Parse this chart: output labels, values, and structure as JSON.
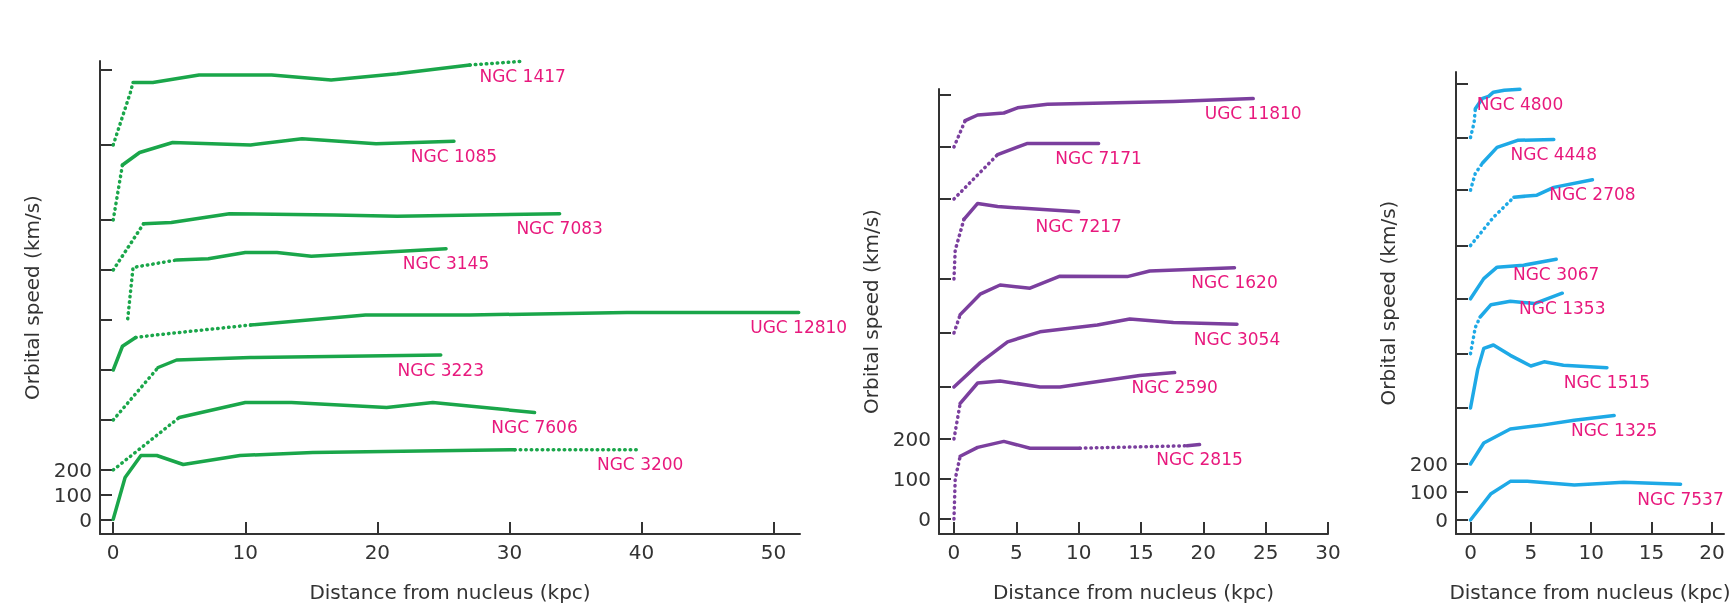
{
  "chart_data": [
    {
      "type": "line",
      "xlabel": "Distance from nucleus (kpc)",
      "ylabel": "Orbital speed (km/s)",
      "xlim": [
        -1,
        52
      ],
      "ylim": [
        -56,
        1836
      ],
      "xticks": [
        0,
        10,
        20,
        30,
        40,
        50
      ],
      "yticks": [
        0,
        100,
        200,
        {
          "value": 400,
          "label": null
        },
        {
          "value": 600,
          "label": null
        },
        {
          "value": 800,
          "label": null
        },
        {
          "value": 1000,
          "label": null
        },
        {
          "value": 1200,
          "label": null
        },
        {
          "value": 1500,
          "label": null
        },
        {
          "value": 1800,
          "label": null
        }
      ],
      "marker": "none",
      "series": [
        {
          "color": "#1aa64a",
          "line_style": "dotted",
          "x": [
            0,
            1.3,
            1.5
          ],
          "values": [
            1500,
            1710,
            1750
          ]
        },
        {
          "color": "#1aa64a",
          "line_style": "solid",
          "x": [
            1.5,
            3,
            6.5,
            12,
            16.5,
            21.5,
            27
          ],
          "values": [
            1750,
            1750,
            1780,
            1780,
            1760,
            1785,
            1820
          ]
        },
        {
          "name": "NGC 1417",
          "color": "#1aa64a",
          "line_style": "dotted",
          "x": [
            27,
            31
          ],
          "values": [
            1820,
            1835
          ]
        },
        {
          "color": "#1aa64a",
          "line_style": "dotted",
          "x": [
            0,
            0.7
          ],
          "values": [
            1200,
            1420
          ]
        },
        {
          "name": "NGC 1085",
          "color": "#1aa64a",
          "line_style": "solid",
          "x": [
            0.7,
            2,
            4.5,
            10.4,
            14.3,
            19.9,
            25.8
          ],
          "values": [
            1420,
            1470,
            1510,
            1500,
            1525,
            1505,
            1515
          ]
        },
        {
          "color": "#1aa64a",
          "line_style": "dotted",
          "x": [
            0,
            2.3
          ],
          "values": [
            1000,
            1185
          ]
        },
        {
          "name": "NGC 7083",
          "color": "#1aa64a",
          "line_style": "solid",
          "x": [
            2.3,
            4.4,
            8.8,
            16.7,
            21.5,
            33.8
          ],
          "values": [
            1185,
            1190,
            1225,
            1220,
            1215,
            1225
          ]
        },
        {
          "color": "#1aa64a",
          "line_style": "dotted",
          "x": [
            1.1,
            1.5,
            4.8
          ],
          "values": [
            805,
            1010,
            1040
          ]
        },
        {
          "name": "NGC 3145",
          "color": "#1aa64a",
          "line_style": "solid",
          "x": [
            4.8,
            7.2,
            10,
            12.4,
            15,
            25.2
          ],
          "values": [
            1040,
            1045,
            1070,
            1070,
            1055,
            1085
          ]
        },
        {
          "color": "#1aa64a",
          "line_style": "solid",
          "x": [
            0,
            0.7,
            1.7
          ],
          "values": [
            600,
            695,
            730
          ]
        },
        {
          "color": "#1aa64a",
          "line_style": "dotted",
          "x": [
            1.7,
            3.2,
            10.4
          ],
          "values": [
            730,
            740,
            780
          ]
        },
        {
          "name": "UGC 12810",
          "color": "#1aa64a",
          "line_style": "solid",
          "x": [
            10.4,
            19.1,
            27,
            38.9,
            51.9
          ],
          "values": [
            780,
            820,
            820,
            830,
            830
          ]
        },
        {
          "color": "#1aa64a",
          "line_style": "dotted",
          "x": [
            0,
            3.4
          ],
          "values": [
            400,
            610
          ]
        },
        {
          "name": "NGC 3223",
          "color": "#1aa64a",
          "line_style": "solid",
          "x": [
            3.4,
            4.8,
            10.4,
            24.8
          ],
          "values": [
            610,
            640,
            650,
            660
          ]
        },
        {
          "color": "#1aa64a",
          "line_style": "dotted",
          "x": [
            0,
            5
          ],
          "values": [
            200,
            410
          ]
        },
        {
          "name": "NGC 7606",
          "color": "#1aa64a",
          "line_style": "solid",
          "x": [
            5,
            10,
            13.5,
            20.7,
            24.2,
            31.9
          ],
          "values": [
            410,
            470,
            470,
            450,
            470,
            430
          ]
        },
        {
          "color": "#1aa64a",
          "line_style": "solid",
          "x": [
            0,
            0.9,
            2.1,
            3.3,
            5.3,
            9.6,
            15.1,
            30.4
          ],
          "values": [
            3,
            170,
            258,
            258,
            222,
            258,
            270,
            281
          ]
        },
        {
          "name": "NGC 3200",
          "color": "#1aa64a",
          "line_style": "dotted",
          "x": [
            30.4,
            39.9
          ],
          "values": [
            281,
            281
          ]
        }
      ]
    },
    {
      "type": "line",
      "xlabel": "Distance from nucleus (kpc)",
      "ylabel": "Orbital speed (km/s)",
      "xlim": [
        -1.2,
        30
      ],
      "ylim": [
        -37.5,
        1075
      ],
      "xticks": [
        0,
        5,
        10,
        15,
        20,
        25,
        30
      ],
      "yticks": [
        0,
        100,
        200,
        {
          "value": 330,
          "label": null
        },
        {
          "value": 465,
          "label": null
        },
        {
          "value": 600,
          "label": null
        },
        {
          "value": 800,
          "label": null
        },
        {
          "value": 930,
          "label": null
        },
        {
          "value": 1060,
          "label": null
        }
      ],
      "marker": "none",
      "series": [
        {
          "color": "#7b3f9e",
          "line_style": "dotted",
          "x": [
            0,
            0.1,
            0.5
          ],
          "values": [
            0,
            100,
            157
          ]
        },
        {
          "color": "#7b3f9e",
          "line_style": "solid",
          "x": [
            0.5,
            1.9,
            4,
            6.1,
            10.1
          ],
          "values": [
            157,
            179,
            194,
            177,
            177
          ]
        },
        {
          "color": "#7b3f9e",
          "line_style": "dotted",
          "x": [
            10.1,
            18.7
          ],
          "values": [
            177,
            183
          ]
        },
        {
          "name": "NGC 2815",
          "color": "#7b3f9e",
          "line_style": "solid",
          "x": [
            18.7,
            19.7
          ],
          "values": [
            183,
            186
          ]
        },
        {
          "color": "#7b3f9e",
          "line_style": "dotted",
          "x": [
            0,
            0.5
          ],
          "values": [
            200,
            289
          ]
        },
        {
          "name": "NGC 2590",
          "color": "#7b3f9e",
          "line_style": "solid",
          "x": [
            0.5,
            1.9,
            3.7,
            6.9,
            8.5,
            14.9,
            17.7
          ],
          "values": [
            289,
            340,
            345,
            330,
            330,
            359,
            366
          ]
        },
        {
          "name": "NGC 3054",
          "color": "#7b3f9e",
          "line_style": "solid",
          "x": [
            0,
            2.1,
            4.3,
            6.9,
            11.5,
            14.1,
            17.6,
            22.7
          ],
          "values": [
            330,
            391,
            443,
            468,
            485,
            500,
            491,
            487
          ]
        },
        {
          "color": "#7b3f9e",
          "line_style": "dotted",
          "x": [
            0,
            0.5
          ],
          "values": [
            465,
            511
          ]
        },
        {
          "name": "NGC 1620",
          "color": "#7b3f9e",
          "line_style": "solid",
          "x": [
            0.5,
            2.1,
            3.7,
            6.1,
            8.5,
            13.9,
            15.7,
            22.5
          ],
          "values": [
            511,
            562,
            585,
            577,
            607,
            606,
            620,
            628
          ]
        },
        {
          "color": "#7b3f9e",
          "line_style": "dotted",
          "x": [
            0,
            0.1,
            0.8
          ],
          "values": [
            600,
            672,
            749
          ]
        },
        {
          "name": "NGC 7217",
          "color": "#7b3f9e",
          "line_style": "solid",
          "x": [
            0.8,
            1.9,
            3.5,
            10
          ],
          "values": [
            749,
            789,
            781,
            768
          ]
        },
        {
          "color": "#7b3f9e",
          "line_style": "dotted",
          "x": [
            0,
            3.5
          ],
          "values": [
            800,
            911
          ]
        },
        {
          "name": "NGC 7171",
          "color": "#7b3f9e",
          "line_style": "solid",
          "x": [
            3.5,
            5.9,
            11.6
          ],
          "values": [
            911,
            939,
            939
          ]
        },
        {
          "color": "#7b3f9e",
          "line_style": "dotted",
          "x": [
            0,
            0.9
          ],
          "values": [
            930,
            996
          ]
        },
        {
          "name": "UGC 11810",
          "color": "#7b3f9e",
          "line_style": "solid",
          "x": [
            0.9,
            1.9,
            4,
            5.1,
            7.5,
            17.6,
            24
          ],
          "values": [
            996,
            1010,
            1015,
            1028,
            1037,
            1044,
            1051
          ]
        }
      ]
    },
    {
      "type": "line",
      "xlabel": "Distance from nucleus (kpc)",
      "ylabel": "Orbital speed (km/s)",
      "xlim": [
        -1.2,
        21
      ],
      "ylim": [
        -50,
        1600
      ],
      "xticks": [
        0,
        5,
        10,
        15,
        20
      ],
      "yticks": [
        0,
        100,
        200,
        {
          "value": 400,
          "label": null
        },
        {
          "value": 594,
          "label": null
        },
        {
          "value": 790,
          "label": null
        },
        {
          "value": 980,
          "label": null
        },
        {
          "value": 1178,
          "label": null
        },
        {
          "value": 1366,
          "label": null
        },
        {
          "value": 1559,
          "label": null
        }
      ],
      "marker": "none",
      "series": [
        {
          "name": "NGC 7537",
          "color": "#1ea9e6",
          "line_style": "solid",
          "x": [
            0,
            1.7,
            3.3,
            4.7,
            8.6,
            12.7,
            17.4
          ],
          "values": [
            0,
            94,
            138,
            138,
            125,
            135,
            128
          ]
        },
        {
          "name": "NGC 1325",
          "color": "#1ea9e6",
          "line_style": "solid",
          "x": [
            0,
            1.1,
            3.3,
            5.8,
            8.6,
            11.9
          ],
          "values": [
            200,
            275,
            325,
            338,
            356,
            373
          ]
        },
        {
          "name": "NGC 1515",
          "color": "#1ea9e6",
          "line_style": "solid",
          "x": [
            0,
            0.6,
            1.1,
            1.9,
            3.3,
            5,
            6.1,
            7.7,
            11.3
          ],
          "values": [
            400,
            538,
            613,
            625,
            588,
            550,
            565,
            553,
            544
          ]
        },
        {
          "color": "#1ea9e6",
          "line_style": "dotted",
          "x": [
            0,
            0.4,
            0.8
          ],
          "values": [
            594,
            688,
            725
          ]
        },
        {
          "name": "NGC 1353",
          "color": "#1ea9e6",
          "line_style": "solid",
          "x": [
            0.8,
            1.7,
            3.3,
            5.3,
            7.6
          ],
          "values": [
            725,
            769,
            781,
            773,
            810
          ]
        },
        {
          "name": "NGC 3067",
          "color": "#1ea9e6",
          "line_style": "solid",
          "x": [
            0,
            1.1,
            2.2,
            4.4,
            7.1
          ],
          "values": [
            790,
            862,
            903,
            910,
            931
          ]
        },
        {
          "color": "#1ea9e6",
          "line_style": "dotted",
          "x": [
            0,
            1.9,
            3.6
          ],
          "values": [
            980,
            1081,
            1153
          ]
        },
        {
          "name": "NGC 2708",
          "color": "#1ea9e6",
          "line_style": "solid",
          "x": [
            3.6,
            5.5,
            6.9,
            10.1
          ],
          "values": [
            1153,
            1160,
            1188,
            1215
          ]
        },
        {
          "color": "#1ea9e6",
          "line_style": "dotted",
          "x": [
            0,
            0.4,
            1
          ],
          "values": [
            1178,
            1238,
            1275
          ]
        },
        {
          "name": "NGC 4448",
          "color": "#1ea9e6",
          "line_style": "solid",
          "x": [
            1,
            2.2,
            3.9,
            6.9
          ],
          "values": [
            1275,
            1331,
            1356,
            1359
          ]
        },
        {
          "color": "#1ea9e6",
          "line_style": "dotted",
          "x": [
            0,
            0.3,
            0.4
          ],
          "values": [
            1366,
            1419,
            1469
          ]
        },
        {
          "name": "NGC 4800",
          "color": "#1ea9e6",
          "line_style": "solid",
          "x": [
            0.4,
            1,
            1.5,
            1.9,
            2.8,
            4.1
          ],
          "values": [
            1469,
            1506,
            1513,
            1528,
            1535,
            1538
          ]
        }
      ]
    }
  ]
}
